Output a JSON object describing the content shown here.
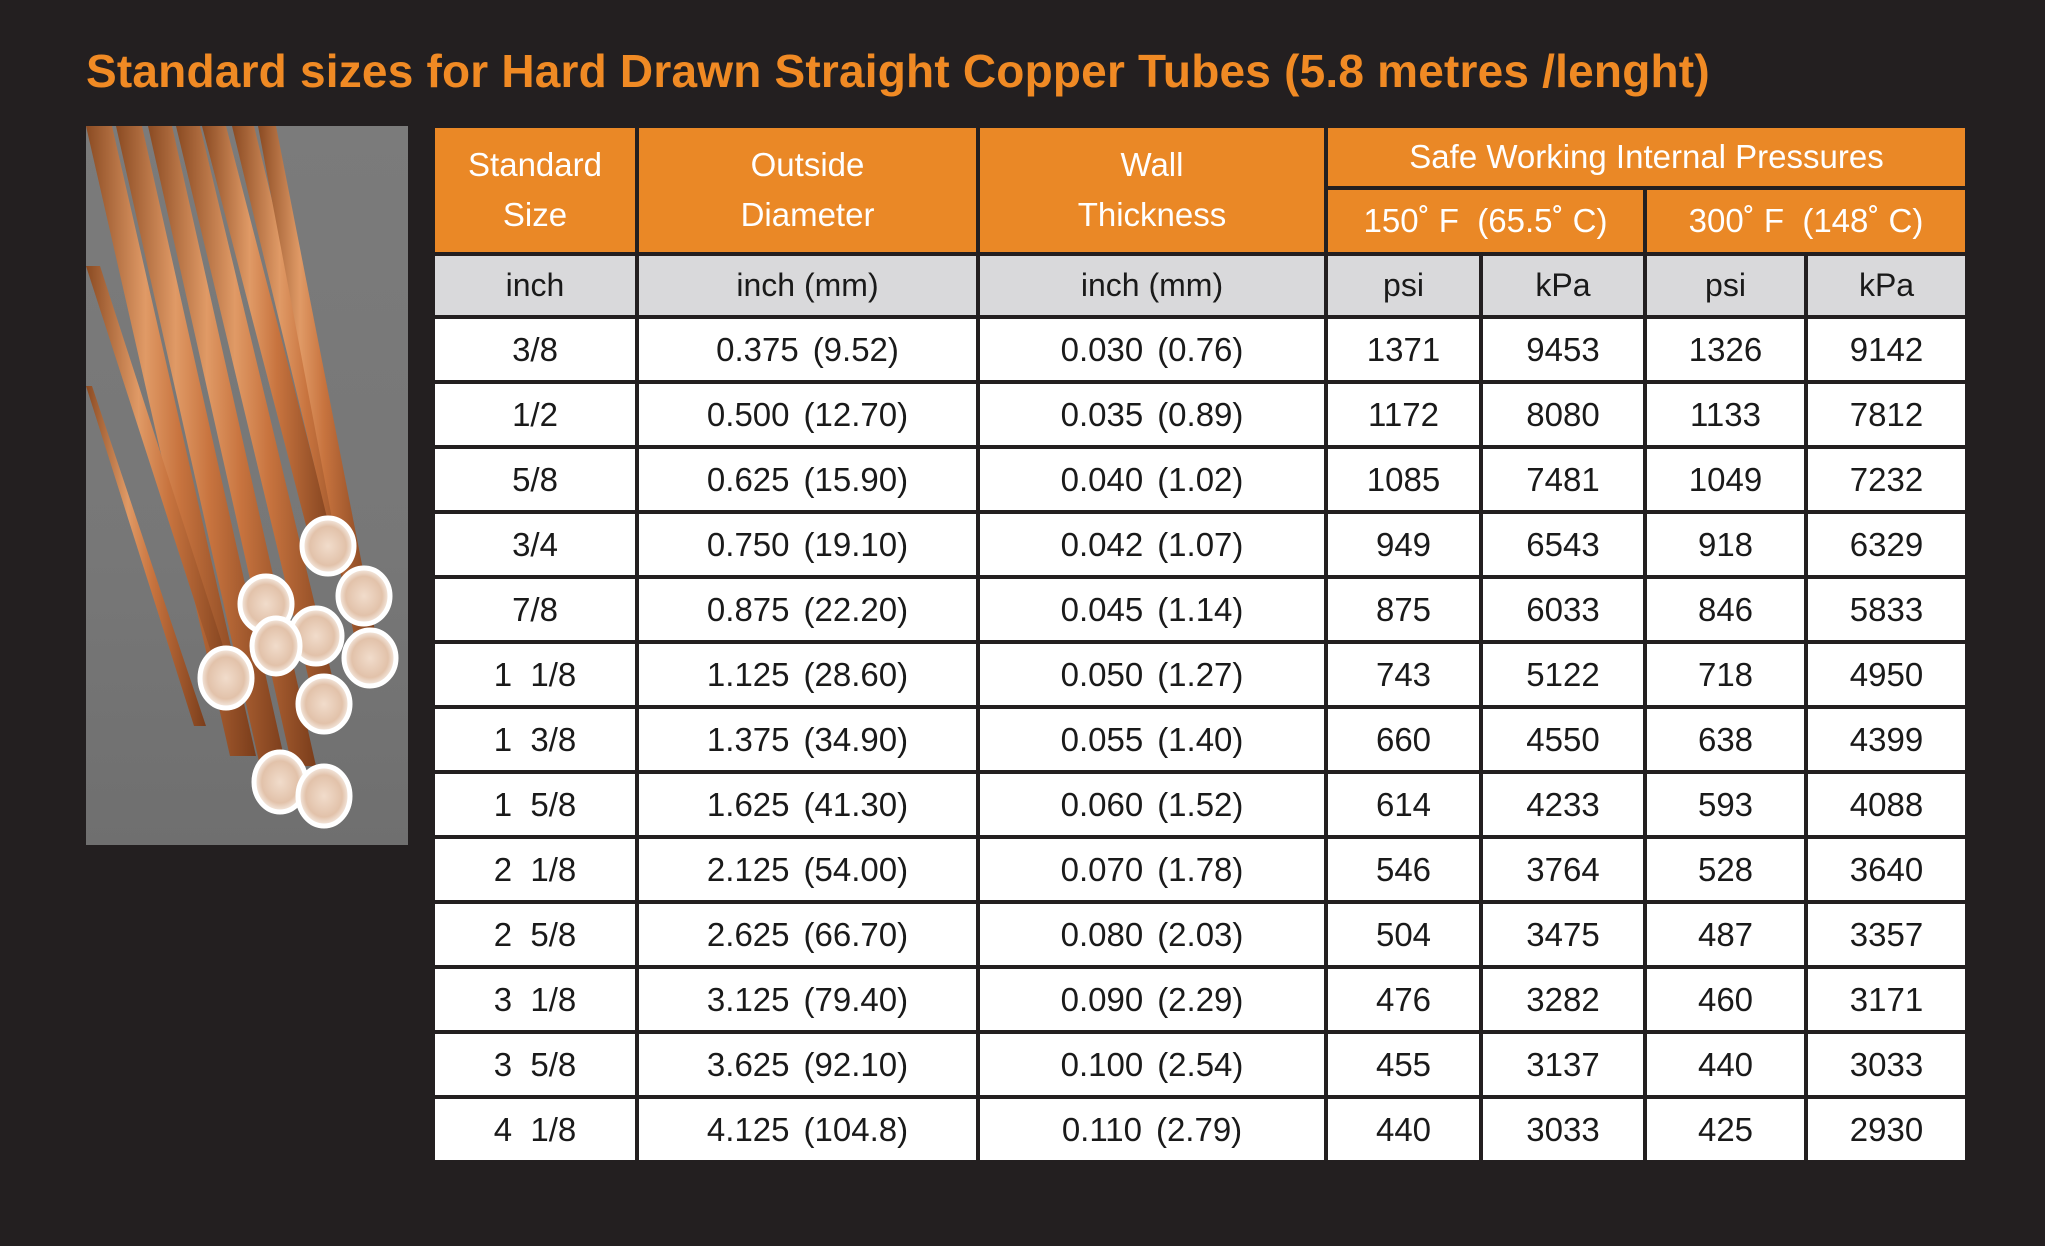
{
  "title": "Standard sizes for Hard Drawn Straight Copper Tubes (5.8 metres /lenght)",
  "colors": {
    "background": "#231f20",
    "accent": "#ea8826",
    "title": "#f08a24",
    "unit_row": "#d9d9db",
    "copper": "#c8743f"
  },
  "image": {
    "subject": "bundle of copper tubes"
  },
  "table": {
    "headers": {
      "standard_size": [
        "Standard",
        "Size"
      ],
      "outside_diameter": [
        "Outside",
        "Diameter"
      ],
      "wall_thickness": [
        "Wall",
        "Thickness"
      ],
      "pressures": "Safe Working Internal Pressures",
      "temp_150": "150˚ F  (65.5˚ C)",
      "temp_300": "300˚ F  (148˚ C)"
    },
    "units": [
      "inch",
      "inch (mm)",
      "inch (mm)",
      "psi",
      "kPa",
      "psi",
      "kPa"
    ],
    "rows": [
      {
        "size": "3/8",
        "od_in": "0.375",
        "od_mm": "(9.52)",
        "wt_in": "0.030",
        "wt_mm": "(0.76)",
        "psi150": "1371",
        "kpa150": "9453",
        "psi300": "1326",
        "kpa300": "9142"
      },
      {
        "size": "1/2",
        "od_in": "0.500",
        "od_mm": "(12.70)",
        "wt_in": "0.035",
        "wt_mm": "(0.89)",
        "psi150": "1172",
        "kpa150": "8080",
        "psi300": "1133",
        "kpa300": "7812"
      },
      {
        "size": "5/8",
        "od_in": "0.625",
        "od_mm": "(15.90)",
        "wt_in": "0.040",
        "wt_mm": "(1.02)",
        "psi150": "1085",
        "kpa150": "7481",
        "psi300": "1049",
        "kpa300": "7232"
      },
      {
        "size": "3/4",
        "od_in": "0.750",
        "od_mm": "(19.10)",
        "wt_in": "0.042",
        "wt_mm": "(1.07)",
        "psi150": "949",
        "kpa150": "6543",
        "psi300": "918",
        "kpa300": "6329"
      },
      {
        "size": "7/8",
        "od_in": "0.875",
        "od_mm": "(22.20)",
        "wt_in": "0.045",
        "wt_mm": "(1.14)",
        "psi150": "875",
        "kpa150": "6033",
        "psi300": "846",
        "kpa300": "5833"
      },
      {
        "size": "1  1/8",
        "od_in": "1.125",
        "od_mm": "(28.60)",
        "wt_in": "0.050",
        "wt_mm": "(1.27)",
        "psi150": "743",
        "kpa150": "5122",
        "psi300": "718",
        "kpa300": "4950"
      },
      {
        "size": "1  3/8",
        "od_in": "1.375",
        "od_mm": "(34.90)",
        "wt_in": "0.055",
        "wt_mm": "(1.40)",
        "psi150": "660",
        "kpa150": "4550",
        "psi300": "638",
        "kpa300": "4399"
      },
      {
        "size": "1  5/8",
        "od_in": "1.625",
        "od_mm": "(41.30)",
        "wt_in": "0.060",
        "wt_mm": "(1.52)",
        "psi150": "614",
        "kpa150": "4233",
        "psi300": "593",
        "kpa300": "4088"
      },
      {
        "size": "2  1/8",
        "od_in": "2.125",
        "od_mm": "(54.00)",
        "wt_in": "0.070",
        "wt_mm": "(1.78)",
        "psi150": "546",
        "kpa150": "3764",
        "psi300": "528",
        "kpa300": "3640"
      },
      {
        "size": "2  5/8",
        "od_in": "2.625",
        "od_mm": "(66.70)",
        "wt_in": "0.080",
        "wt_mm": "(2.03)",
        "psi150": "504",
        "kpa150": "3475",
        "psi300": "487",
        "kpa300": "3357"
      },
      {
        "size": "3  1/8",
        "od_in": "3.125",
        "od_mm": "(79.40)",
        "wt_in": "0.090",
        "wt_mm": "(2.29)",
        "psi150": "476",
        "kpa150": "3282",
        "psi300": "460",
        "kpa300": "3171"
      },
      {
        "size": "3  5/8",
        "od_in": "3.625",
        "od_mm": "(92.10)",
        "wt_in": "0.100",
        "wt_mm": "(2.54)",
        "psi150": "455",
        "kpa150": "3137",
        "psi300": "440",
        "kpa300": "3033"
      },
      {
        "size": "4  1/8",
        "od_in": "4.125",
        "od_mm": "(104.8)",
        "wt_in": "0.110",
        "wt_mm": "(2.79)",
        "psi150": "440",
        "kpa150": "3033",
        "psi300": "425",
        "kpa300": "2930"
      }
    ]
  }
}
